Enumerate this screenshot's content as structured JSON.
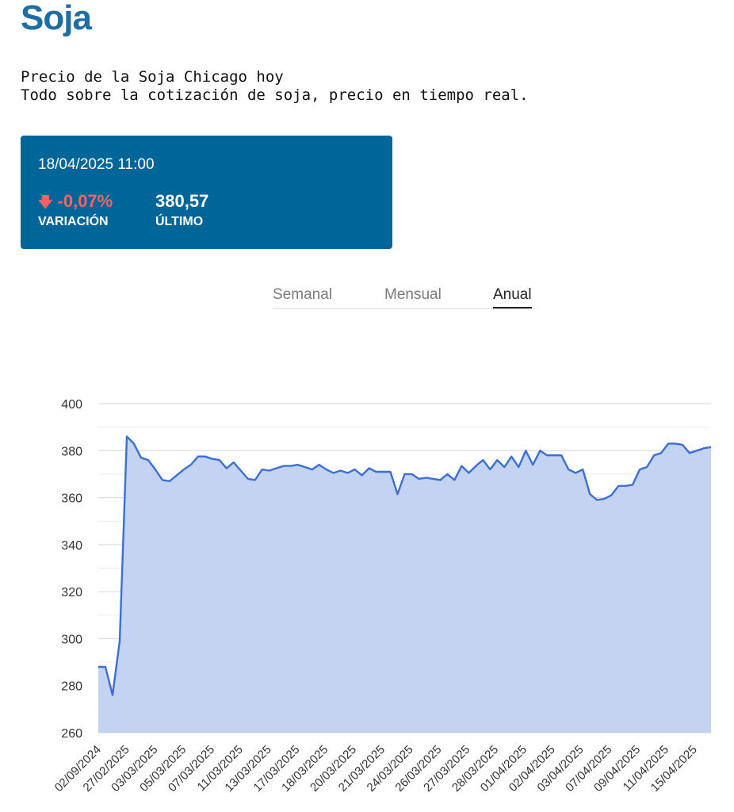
{
  "header": {
    "title": "Soja"
  },
  "description": {
    "line1": "Precio de la Soja Chicago hoy",
    "line2": "Todo sobre la cotización de soja, precio en tiempo real."
  },
  "quote_card": {
    "datetime": "18/04/2025 11:00",
    "variation_value": "-0,07%",
    "variation_label": "VARIACIÓN",
    "last_value": "380,57",
    "last_label": "ÚLTIMO"
  },
  "tabs": [
    {
      "label": "Semanal",
      "active": false
    },
    {
      "label": "Mensual",
      "active": false
    },
    {
      "label": "Anual",
      "active": true
    }
  ],
  "colors": {
    "accent": "#1c6ea4",
    "card": "#006699",
    "negative": "#f06464",
    "line": "#3a6fd8",
    "area": "#c3d3f1"
  },
  "chart_data": {
    "type": "area",
    "ylim": [
      260,
      400
    ],
    "yticks": [
      260,
      280,
      300,
      320,
      340,
      360,
      380,
      400
    ],
    "grid": true,
    "xtick_labels": [
      "02/09/2024",
      "27/02/2025",
      "03/03/2025",
      "05/03/2025",
      "07/03/2025",
      "11/03/2025",
      "13/03/2025",
      "17/03/2025",
      "18/03/2025",
      "20/03/2025",
      "21/03/2025",
      "24/03/2025",
      "26/03/2025",
      "27/03/2025",
      "28/03/2025",
      "01/04/2025",
      "02/04/2025",
      "03/04/2025",
      "07/04/2025",
      "09/04/2025",
      "11/04/2025",
      "15/04/2025"
    ],
    "values": [
      288,
      288,
      276,
      299,
      386,
      383,
      377,
      376,
      372,
      367.5,
      367,
      369.5,
      372,
      374,
      377.5,
      377.5,
      376.5,
      376,
      372.5,
      375,
      371.5,
      368,
      367.5,
      372,
      371.5,
      372.5,
      373.5,
      373.5,
      374,
      373,
      372,
      374,
      372,
      370.5,
      371.5,
      370.5,
      372,
      369.5,
      372.5,
      371,
      371,
      371,
      361.5,
      370,
      370,
      368,
      368.5,
      368,
      367.5,
      370,
      367.5,
      373.5,
      370.5,
      373.5,
      376,
      372,
      376,
      373,
      377.5,
      373,
      380,
      374,
      380,
      378,
      378,
      378,
      372,
      370.5,
      372,
      361.5,
      359,
      359.5,
      361,
      365,
      365,
      365.5,
      372,
      373,
      378,
      379,
      383,
      383,
      382.5,
      379,
      380,
      381,
      381.5
    ]
  }
}
